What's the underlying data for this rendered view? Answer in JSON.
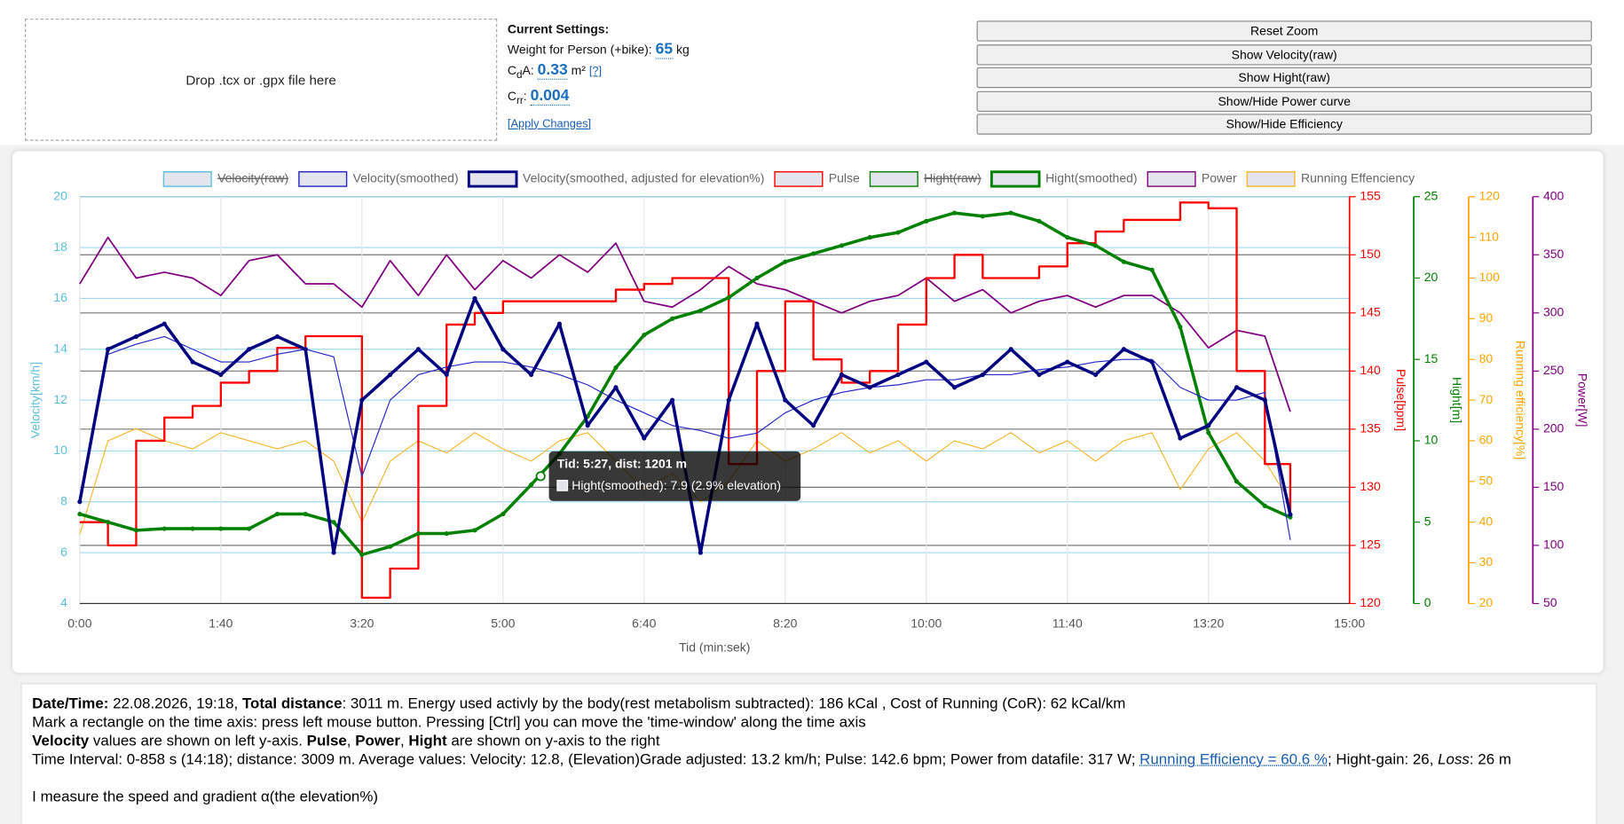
{
  "drop_zone": {
    "text": "Drop .tcx or .gpx file here"
  },
  "settings": {
    "title": "Current Settings:",
    "weight_label": "Weight for Person (+bike):",
    "weight": "65",
    "weight_unit": "kg",
    "cda_c": "C",
    "cda_sub": "d",
    "cda_rest": "A:",
    "cda": "0.33",
    "cda_unit": "m²",
    "cda_help": "[?]",
    "crr_c": "C",
    "crr_sub": "rr",
    "crr_colon": ":",
    "crr": "0.004",
    "apply": "[Apply Changes]"
  },
  "buttons": [
    "Reset Zoom",
    "Show Velocity(raw)",
    "Show Hight(raw)",
    "Show/Hide Power curve",
    "Show/Hide Efficiency"
  ],
  "chart": {
    "type": "line",
    "x_label": "Tid (min:sek)",
    "grid": true,
    "xlim": [
      0,
      900
    ],
    "xticks": [
      {
        "value": 0,
        "label": "0:00"
      },
      {
        "value": 100,
        "label": "1:40"
      },
      {
        "value": 200,
        "label": "3:20"
      },
      {
        "value": 300,
        "label": "5:00"
      },
      {
        "value": 400,
        "label": "6:40"
      },
      {
        "value": 500,
        "label": "8:20"
      },
      {
        "value": 600,
        "label": "10:00"
      },
      {
        "value": 700,
        "label": "11:40"
      },
      {
        "value": 800,
        "label": "13:20"
      },
      {
        "value": 900,
        "label": "15:00"
      }
    ],
    "x": [
      0,
      20,
      40,
      60,
      80,
      100,
      120,
      140,
      160,
      180,
      200,
      220,
      240,
      260,
      280,
      300,
      320,
      340,
      360,
      380,
      400,
      420,
      440,
      460,
      480,
      500,
      520,
      540,
      560,
      580,
      600,
      620,
      640,
      660,
      680,
      700,
      720,
      740,
      760,
      780,
      800,
      820,
      840,
      858
    ],
    "axes": [
      {
        "label": "Velocity[km/h]",
        "color": "#5bc0de",
        "lim": [
          4,
          20
        ],
        "ticks": [
          4,
          6,
          8,
          10,
          12,
          14,
          16,
          18,
          20
        ]
      },
      {
        "label": "Pulse[bpm]",
        "color": "#ff0000",
        "lim": [
          120,
          155
        ],
        "ticks": [
          120,
          125,
          130,
          135,
          140,
          145,
          150,
          155
        ]
      },
      {
        "label": "Hight[m]",
        "color": "#008000",
        "lim": [
          0,
          25
        ],
        "ticks": [
          0,
          5,
          10,
          15,
          20,
          25
        ]
      },
      {
        "label": "Running efficiency[%]",
        "color": "#ffa500",
        "lim": [
          20,
          120
        ],
        "ticks": [
          20,
          30,
          40,
          50,
          60,
          70,
          80,
          90,
          100,
          110,
          120
        ]
      },
      {
        "label": "Power[W]",
        "color": "#800080",
        "lim": [
          50,
          400
        ],
        "ticks": [
          50,
          100,
          150,
          200,
          250,
          300,
          350,
          400
        ]
      }
    ],
    "series": [
      {
        "name": "Velocity(raw)",
        "color": "#5bc0de",
        "axis": 0,
        "hidden": true
      },
      {
        "name": "Velocity(smoothed)",
        "color": "#2525c8",
        "axis": 0,
        "width": 1,
        "values": [
          8,
          13.8,
          14.2,
          14.5,
          14,
          13.5,
          13.5,
          13.8,
          14,
          13.7,
          9,
          12,
          13,
          13.3,
          13.5,
          13.5,
          13.3,
          13,
          12.6,
          12,
          11.5,
          11,
          10.8,
          10.5,
          10.7,
          11.5,
          12,
          12.3,
          12.5,
          12.6,
          12.8,
          12.8,
          13,
          13,
          13.2,
          13.3,
          13.5,
          13.6,
          13.6,
          12.5,
          12,
          12,
          12.3,
          6.5
        ]
      },
      {
        "name": "Velocity(smoothed, adjusted for elevation%)",
        "color": "#000080",
        "axis": 0,
        "width": 3,
        "markers": true,
        "values": [
          8,
          14,
          14.5,
          15,
          13.5,
          13,
          14,
          14.5,
          14,
          6,
          12,
          13,
          14,
          13,
          16,
          14,
          13,
          15,
          11,
          12.5,
          10.5,
          12,
          6,
          12,
          15,
          12,
          11,
          13,
          12.5,
          13,
          13.5,
          12.5,
          13,
          14,
          13,
          13.5,
          13,
          14,
          13.5,
          10.5,
          11,
          12.5,
          12,
          7.5
        ]
      },
      {
        "name": "Pulse",
        "color": "#ff0000",
        "axis": 1,
        "width": 2,
        "step": true,
        "values": [
          127,
          125,
          134,
          136,
          137,
          139,
          140,
          142,
          143,
          143,
          120.5,
          123,
          137,
          144,
          145,
          146,
          146,
          146,
          146,
          147,
          147.5,
          148,
          148,
          132,
          140,
          146,
          141,
          139,
          140,
          144,
          148,
          150,
          148,
          148,
          149,
          151,
          152,
          153,
          153,
          154.5,
          154,
          140,
          132,
          128
        ]
      },
      {
        "name": "Hight(raw)",
        "color": "#008000",
        "axis": 2,
        "hidden": true
      },
      {
        "name": "Hight(smoothed)",
        "color": "#008000",
        "axis": 2,
        "width": 3,
        "markers": true,
        "values": [
          5.5,
          5,
          4.5,
          4.6,
          4.6,
          4.6,
          4.6,
          5.5,
          5.5,
          5,
          3,
          3.5,
          4.3,
          4.3,
          4.5,
          5.5,
          7.3,
          9.2,
          11.5,
          14.5,
          16.5,
          17.5,
          18,
          18.8,
          20,
          21,
          21.5,
          22,
          22.5,
          22.8,
          23.5,
          24,
          23.8,
          24,
          23.5,
          22.5,
          22,
          21,
          20.5,
          17,
          10.5,
          7.5,
          6,
          5.3
        ]
      },
      {
        "name": "Power",
        "color": "#800080",
        "axis": 4,
        "width": 1.5,
        "values": [
          325,
          365,
          330,
          335,
          330,
          315,
          345,
          350,
          325,
          325,
          305,
          345,
          315,
          350,
          320,
          345,
          330,
          350,
          335,
          360,
          310,
          305,
          320,
          340,
          325,
          320,
          310,
          300,
          310,
          315,
          330,
          310,
          320,
          300,
          310,
          315,
          305,
          315,
          315,
          300,
          270,
          285,
          280,
          215
        ]
      },
      {
        "name": "Running Effenciency",
        "color": "#f5b730",
        "axis": 3,
        "width": 1,
        "values": [
          37,
          60,
          63,
          60,
          58,
          62,
          60,
          58,
          60,
          55,
          40,
          55,
          60,
          57,
          62,
          58,
          55,
          60,
          62,
          55,
          48,
          52,
          45,
          50,
          60,
          55,
          58,
          62,
          57,
          60,
          55,
          60,
          58,
          62,
          57,
          60,
          55,
          60,
          62,
          48,
          58,
          62,
          55,
          45
        ]
      }
    ],
    "tooltip": {
      "title": "Tid: 5:27, dist: 1201 m",
      "text": "Hight(smoothed): 7.9 (2.9% elevation)"
    }
  },
  "info": {
    "lines": [
      [
        {
          "text": "Date/Time:",
          "bold": true
        },
        {
          "text": " 22.08.2026, 19:18, "
        },
        {
          "text": "Total distance",
          "bold": true
        },
        {
          "text": ": 3011 m. Energy used activly by the body(rest metabolism subtracted): 186 kCal , Cost of Running (CoR): 62 kCal/km"
        }
      ],
      [
        {
          "text": "Mark a rectangle on the time axis: press left mouse button. Pressing [Ctrl] you can move the 'time-window' along the time axis"
        }
      ],
      [
        {
          "text": "Velocity",
          "bold": true
        },
        {
          "text": " values are shown on left y-axis. "
        },
        {
          "text": "Pulse",
          "bold": true
        },
        {
          "text": ", "
        },
        {
          "text": "Power",
          "bold": true
        },
        {
          "text": ", "
        },
        {
          "text": "Hight",
          "bold": true
        },
        {
          "text": " are shown on y-axis to the right"
        }
      ],
      [
        {
          "text": "Time Interval: 0-858 s (14:18); distance: 3009 m. Average values: Velocity: 12.8, (Elevation)Grade adjusted: 13.2 km/h; Pulse: 142.6 bpm; Power from datafile: 317 W; "
        },
        {
          "text": "Running Efficiency = 60.6 %",
          "link": true
        },
        {
          "text": "; Hight-gain: 26, "
        },
        {
          "text": "Loss",
          "italic": true
        },
        {
          "text": ": 26 m"
        }
      ],
      [],
      [
        {
          "text": "I measure the speed and gradient α(the elevation%)"
        }
      ]
    ]
  }
}
